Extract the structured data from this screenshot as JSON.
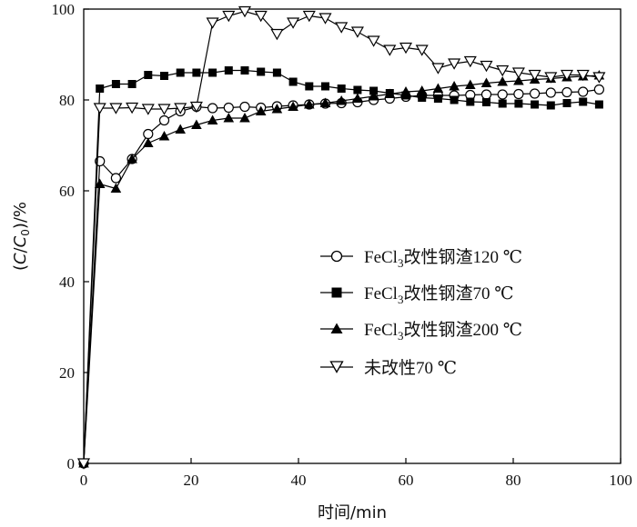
{
  "chart_data": {
    "type": "line",
    "xlabel": "时间/min",
    "ylabel_parts": [
      "(",
      "C",
      "/",
      "C",
      "0",
      ")/%"
    ],
    "xlim": [
      0,
      100
    ],
    "ylim": [
      0,
      100
    ],
    "xticks": [
      0,
      20,
      40,
      60,
      80,
      100
    ],
    "yticks": [
      0,
      20,
      40,
      60,
      80,
      100
    ],
    "grid": false,
    "legend_position": "center-right",
    "series": [
      {
        "name_parts": [
          "FeCl",
          "3",
          "改性钢渣120 ℃"
        ],
        "marker": "circle-open",
        "x": [
          0,
          3,
          6,
          9,
          12,
          15,
          18,
          21,
          24,
          27,
          30,
          33,
          36,
          39,
          42,
          45,
          48,
          51,
          54,
          57,
          60,
          63,
          66,
          69,
          72,
          75,
          78,
          81,
          84,
          87,
          90,
          93,
          96
        ],
        "values": [
          0,
          66.5,
          62.8,
          67,
          72.5,
          75.5,
          77.5,
          78.5,
          78.2,
          78.3,
          78.5,
          78.3,
          78.6,
          78.8,
          79,
          79.2,
          79.3,
          79.5,
          80,
          80.3,
          80.7,
          81,
          81,
          81,
          81.1,
          81.2,
          81.2,
          81.3,
          81.4,
          81.6,
          81.7,
          81.8,
          82.3
        ]
      },
      {
        "name_parts": [
          "FeCl",
          "3",
          "改性钢渣70 ℃"
        ],
        "marker": "square-filled",
        "x": [
          0,
          3,
          6,
          9,
          12,
          15,
          18,
          21,
          24,
          27,
          30,
          33,
          36,
          39,
          42,
          45,
          48,
          51,
          54,
          57,
          60,
          63,
          66,
          69,
          72,
          75,
          78,
          81,
          84,
          87,
          90,
          93,
          96
        ],
        "values": [
          0,
          82.5,
          83.5,
          83.5,
          85.5,
          85.3,
          86,
          86,
          86,
          86.5,
          86.5,
          86.2,
          86,
          84,
          83,
          83,
          82.5,
          82.2,
          82,
          81.5,
          81,
          80.5,
          80.3,
          80,
          79.6,
          79.5,
          79.2,
          79.2,
          79,
          78.8,
          79.3,
          79.6,
          79
        ]
      },
      {
        "name_parts": [
          "FeCl",
          "3",
          "改性钢渣200 ℃"
        ],
        "marker": "triangle-up-filled",
        "x": [
          0,
          3,
          6,
          9,
          12,
          15,
          18,
          21,
          24,
          27,
          30,
          33,
          36,
          39,
          42,
          45,
          48,
          51,
          54,
          57,
          60,
          63,
          66,
          69,
          72,
          75,
          78,
          81,
          84,
          87,
          90,
          93,
          96
        ],
        "values": [
          0,
          61.5,
          60.5,
          67,
          70.5,
          72,
          73.5,
          74.5,
          75.5,
          76,
          76,
          77.5,
          78,
          78.5,
          79,
          79.3,
          79.8,
          80.3,
          80.8,
          81.3,
          81.8,
          82,
          82.5,
          83,
          83.3,
          83.7,
          84,
          84.2,
          84.5,
          84.7,
          85,
          85.2,
          85.4
        ]
      },
      {
        "name_parts": [
          "未改性70 ℃"
        ],
        "marker": "triangle-down-open",
        "x": [
          0,
          3,
          6,
          9,
          12,
          15,
          18,
          21,
          24,
          27,
          30,
          33,
          36,
          39,
          42,
          45,
          48,
          51,
          54,
          57,
          60,
          63,
          66,
          69,
          72,
          75,
          78,
          81,
          84,
          87,
          90,
          93,
          96
        ],
        "values": [
          0,
          78.2,
          78.2,
          78.3,
          78,
          78,
          78.2,
          78.5,
          97,
          98.5,
          99.5,
          98.5,
          94.5,
          97,
          98.5,
          98,
          96,
          95,
          93,
          91,
          91.5,
          91,
          87,
          88,
          88.5,
          87.5,
          86.5,
          86,
          85.5,
          85,
          85.5,
          85.5,
          85
        ]
      }
    ]
  }
}
